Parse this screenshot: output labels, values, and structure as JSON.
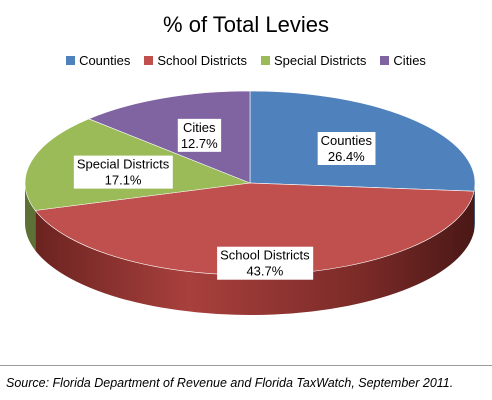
{
  "chart_data": {
    "type": "pie",
    "title": "% of Total Levies",
    "categories": [
      "Counties",
      "School Districts",
      "Special Districts",
      "Cities"
    ],
    "values": [
      26.4,
      43.7,
      17.1,
      12.7
    ],
    "value_labels": [
      "26.4%",
      "43.7%",
      "17.1%",
      "12.7%"
    ],
    "colors": [
      "#4f81bd",
      "#c0504d",
      "#9bbb59",
      "#8064a2"
    ],
    "legend_position": "top",
    "style": "3d"
  },
  "source": "Source: Florida Department of Revenue and Florida TaxWatch, September 2011."
}
